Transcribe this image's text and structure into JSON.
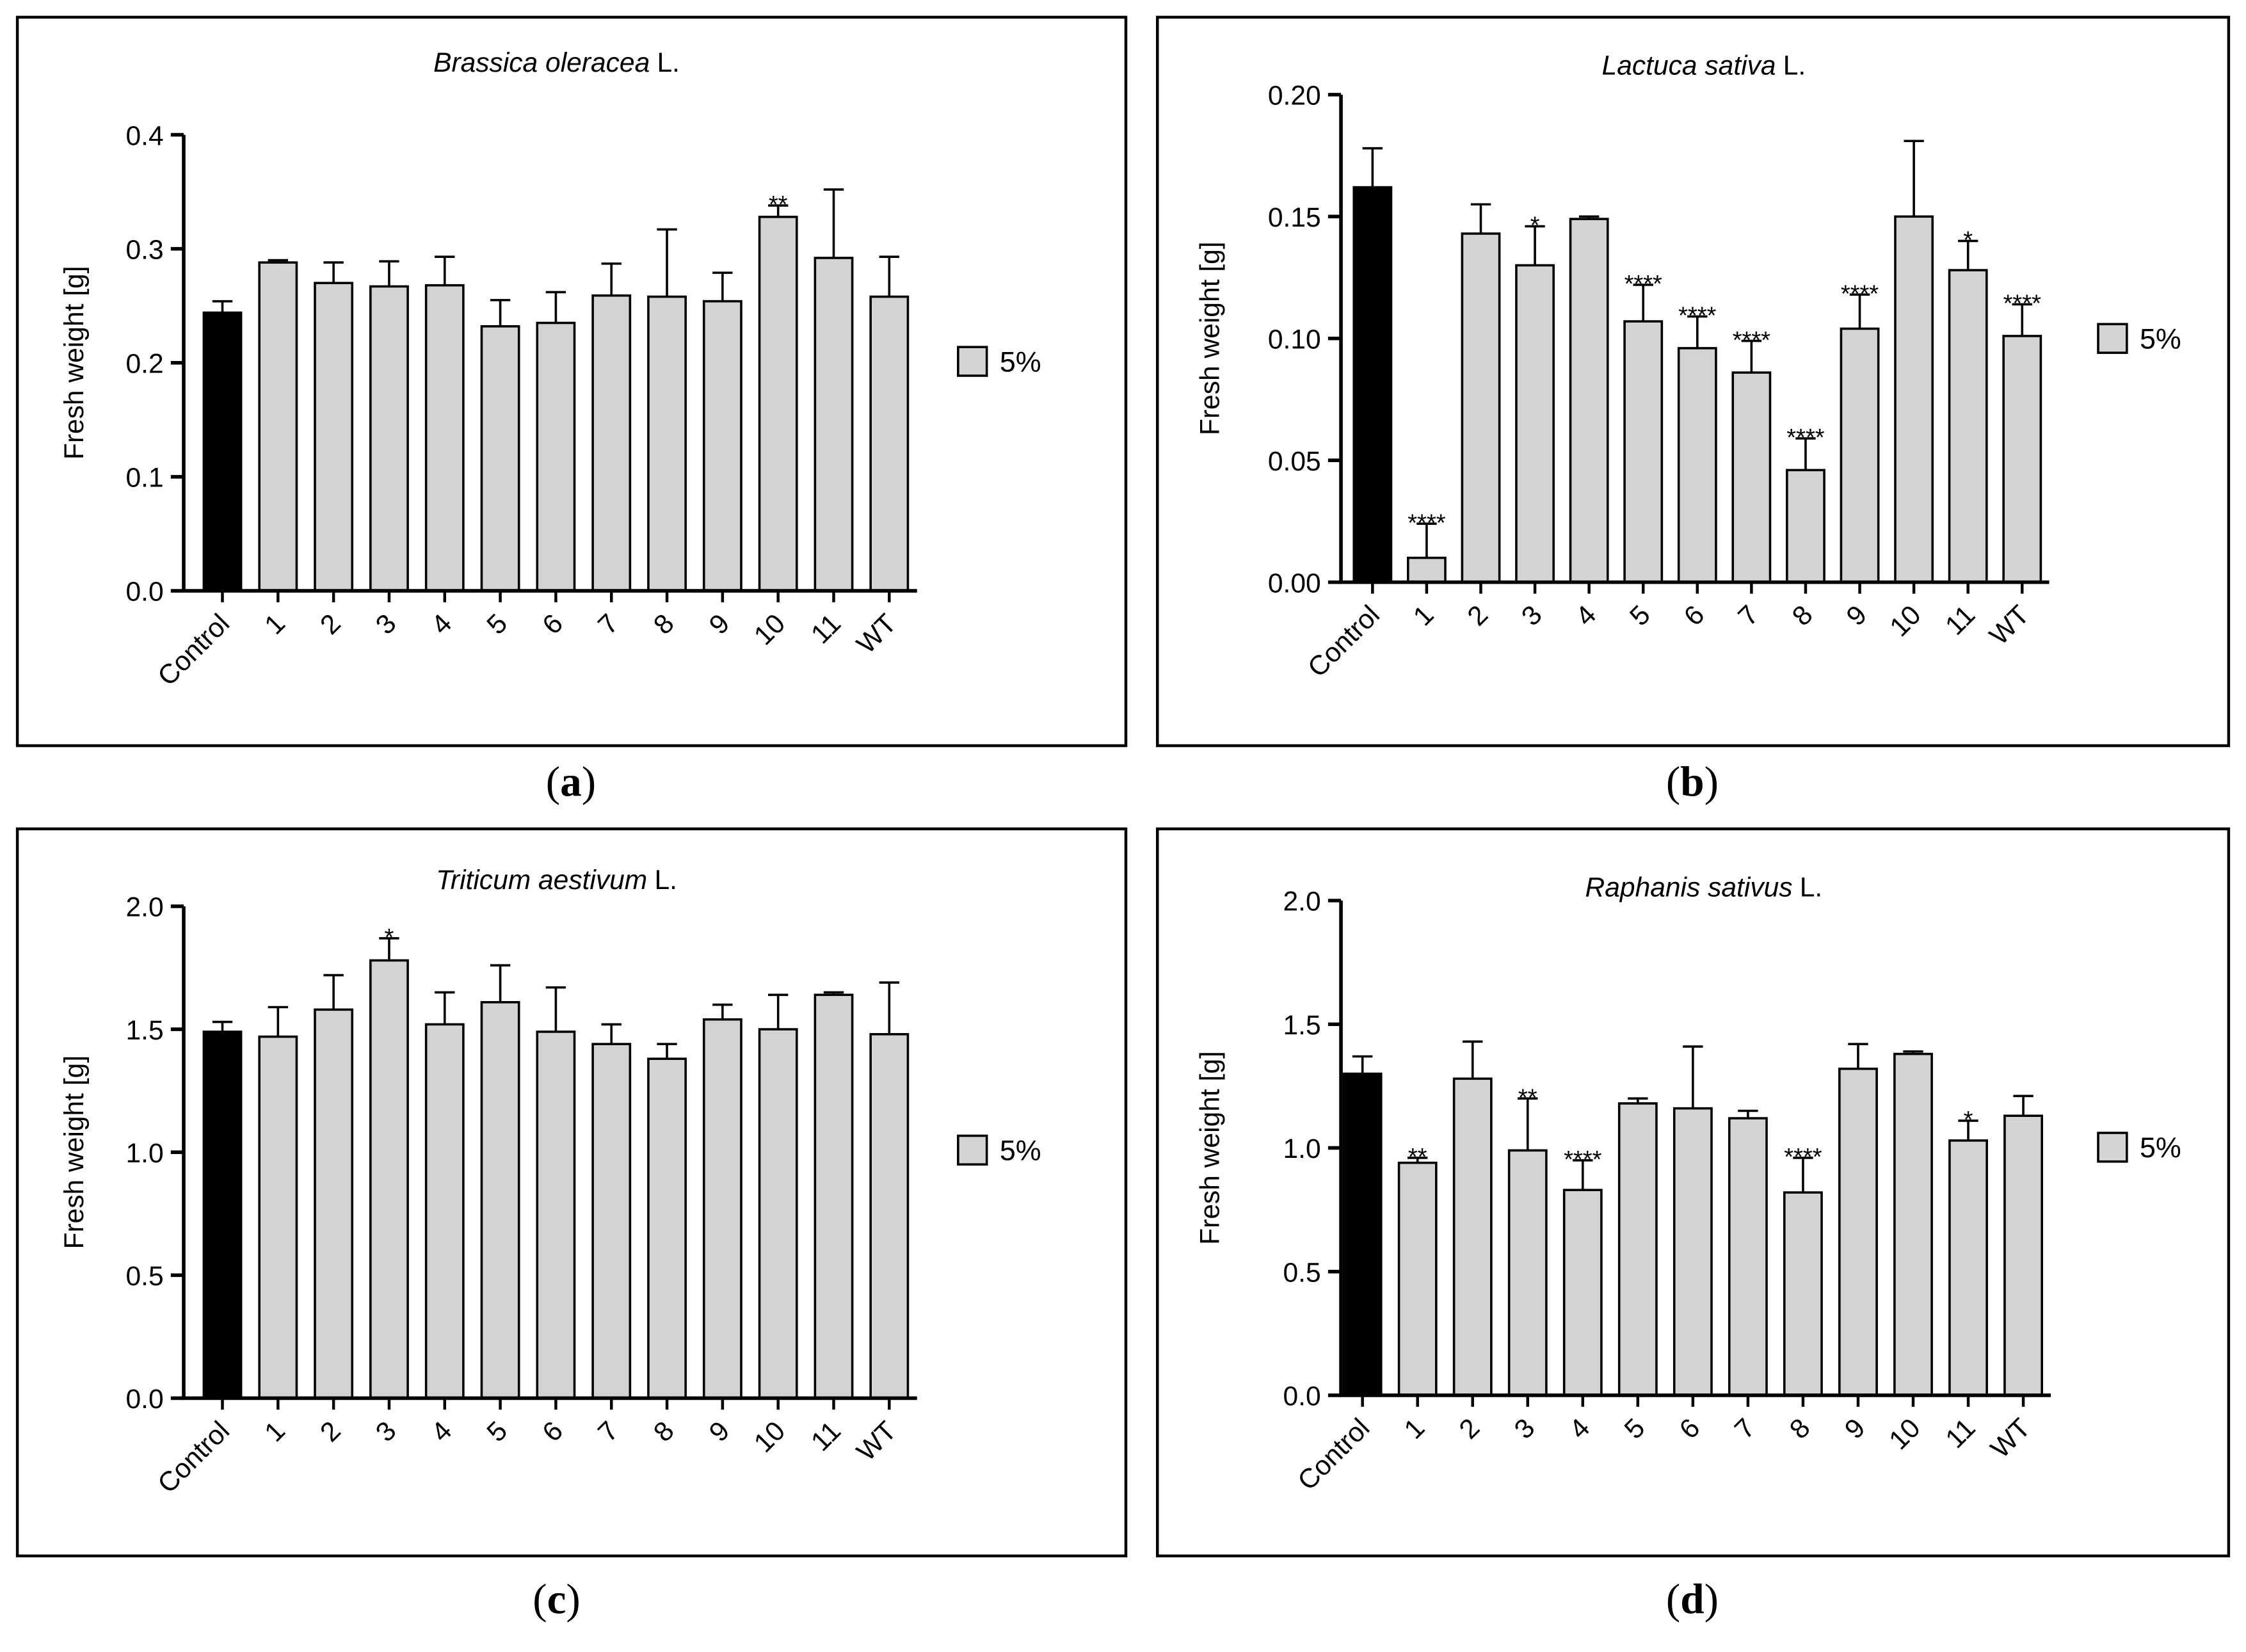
{
  "chart_data": [
    {
      "type": "bar",
      "title": [
        "Brassica oleracea",
        "L."
      ],
      "panel": [
        "(",
        "a",
        ")"
      ],
      "ylabel": "Fresh weight [g]",
      "categories": [
        "Control",
        "1",
        "2",
        "3",
        "4",
        "5",
        "6",
        "7",
        "8",
        "9",
        "10",
        "11",
        "WT"
      ],
      "values": [
        0.244,
        0.288,
        0.27,
        0.267,
        0.268,
        0.232,
        0.235,
        0.259,
        0.258,
        0.254,
        0.328,
        0.292,
        0.258
      ],
      "errors": [
        0.01,
        0.002,
        0.018,
        0.022,
        0.025,
        0.023,
        0.027,
        0.028,
        0.059,
        0.025,
        0.01,
        0.06,
        0.035
      ],
      "annotations": [
        null,
        null,
        null,
        null,
        null,
        null,
        null,
        null,
        null,
        null,
        "**",
        null,
        null
      ],
      "colors": [
        "#000000",
        "#d3d3d3",
        "#d3d3d3",
        "#d3d3d3",
        "#d3d3d3",
        "#d3d3d3",
        "#d3d3d3",
        "#d3d3d3",
        "#d3d3d3",
        "#d3d3d3",
        "#d3d3d3",
        "#d3d3d3",
        "#d3d3d3"
      ],
      "legend": {
        "name": "5%",
        "color": "#d3d3d3"
      },
      "ylim": [
        0,
        0.4
      ],
      "yticks": [
        {
          "value": 0,
          "label": "0.0"
        },
        0.1,
        0.2,
        0.3,
        0.4
      ]
    },
    {
      "type": "bar",
      "title": [
        "Lactuca sativa",
        "L."
      ],
      "panel": [
        "(",
        "b",
        ")"
      ],
      "ylabel": "Fresh weight [g]",
      "categories": [
        "Control",
        "1",
        "2",
        "3",
        "4",
        "5",
        "6",
        "7",
        "8",
        "9",
        "10",
        "11",
        "WT"
      ],
      "values": [
        0.162,
        0.01,
        0.143,
        0.13,
        0.149,
        0.107,
        0.096,
        0.086,
        0.046,
        0.104,
        0.15,
        0.128,
        0.101
      ],
      "errors": [
        0.016,
        0.014,
        0.012,
        0.016,
        0.001,
        0.015,
        0.013,
        0.013,
        0.013,
        0.014,
        0.031,
        0.012,
        0.013
      ],
      "annotations": [
        null,
        "****",
        null,
        "*",
        null,
        "****",
        "****",
        "****",
        "****",
        "****",
        null,
        "*",
        "****"
      ],
      "colors": [
        "#000000",
        "#d3d3d3",
        "#d3d3d3",
        "#d3d3d3",
        "#d3d3d3",
        "#d3d3d3",
        "#d3d3d3",
        "#d3d3d3",
        "#d3d3d3",
        "#d3d3d3",
        "#d3d3d3",
        "#d3d3d3",
        "#d3d3d3"
      ],
      "legend": {
        "name": "5%",
        "color": "#d3d3d3"
      },
      "ylim": [
        0,
        0.2
      ],
      "yticks": [
        {
          "value": 0,
          "label": "0.00"
        },
        0.05,
        {
          "value": 0.1,
          "label": "0.10"
        },
        0.15,
        {
          "value": 0.2,
          "label": "0.20"
        }
      ]
    },
    {
      "type": "bar",
      "title": [
        "Triticum aestivum",
        "L."
      ],
      "panel": [
        "(",
        "c",
        ")"
      ],
      "ylabel": "Fresh weight [g]",
      "categories": [
        "Control",
        "1",
        "2",
        "3",
        "4",
        "5",
        "6",
        "7",
        "8",
        "9",
        "10",
        "11",
        "WT"
      ],
      "values": [
        1.49,
        1.47,
        1.58,
        1.78,
        1.52,
        1.61,
        1.49,
        1.44,
        1.38,
        1.54,
        1.5,
        1.64,
        1.48
      ],
      "errors": [
        0.04,
        0.12,
        0.14,
        0.09,
        0.13,
        0.15,
        0.18,
        0.08,
        0.06,
        0.06,
        0.14,
        0.01,
        0.21
      ],
      "annotations": [
        null,
        null,
        null,
        "*",
        null,
        null,
        null,
        null,
        null,
        null,
        null,
        null,
        null
      ],
      "colors": [
        "#000000",
        "#d3d3d3",
        "#d3d3d3",
        "#d3d3d3",
        "#d3d3d3",
        "#d3d3d3",
        "#d3d3d3",
        "#d3d3d3",
        "#d3d3d3",
        "#d3d3d3",
        "#d3d3d3",
        "#d3d3d3",
        "#d3d3d3"
      ],
      "legend": {
        "name": "5%",
        "color": "#d3d3d3"
      },
      "ylim": [
        0,
        2
      ],
      "yticks": [
        {
          "value": 0,
          "label": "0.0"
        },
        0.5,
        {
          "value": 1,
          "label": "1.0"
        },
        1.5,
        {
          "value": 2,
          "label": "2.0"
        }
      ]
    },
    {
      "type": "bar",
      "title": [
        "Raphanis sativus",
        "L."
      ],
      "panel": [
        "(",
        "d",
        ")"
      ],
      "ylabel": "Fresh weight [g]",
      "categories": [
        "Control",
        "1",
        "2",
        "3",
        "4",
        "5",
        "6",
        "7",
        "8",
        "9",
        "10",
        "11",
        "WT"
      ],
      "values": [
        1.3,
        0.94,
        1.28,
        0.99,
        0.83,
        1.18,
        1.16,
        1.12,
        0.82,
        1.32,
        1.38,
        1.03,
        1.13
      ],
      "errors": [
        0.07,
        0.02,
        0.15,
        0.21,
        0.12,
        0.02,
        0.25,
        0.03,
        0.14,
        0.1,
        0.01,
        0.08,
        0.08
      ],
      "annotations": [
        null,
        "**",
        null,
        "**",
        "****",
        null,
        null,
        null,
        "****",
        null,
        null,
        "*",
        null
      ],
      "colors": [
        "#000000",
        "#d3d3d3",
        "#d3d3d3",
        "#d3d3d3",
        "#d3d3d3",
        "#d3d3d3",
        "#d3d3d3",
        "#d3d3d3",
        "#d3d3d3",
        "#d3d3d3",
        "#d3d3d3",
        "#d3d3d3",
        "#d3d3d3"
      ],
      "legend": {
        "name": "5%",
        "color": "#d3d3d3"
      },
      "ylim": [
        0,
        2
      ],
      "yticks": [
        {
          "value": 0,
          "label": "0.0"
        },
        0.5,
        {
          "value": 1,
          "label": "1.0"
        },
        1.5,
        {
          "value": 2,
          "label": "2.0"
        }
      ]
    }
  ]
}
